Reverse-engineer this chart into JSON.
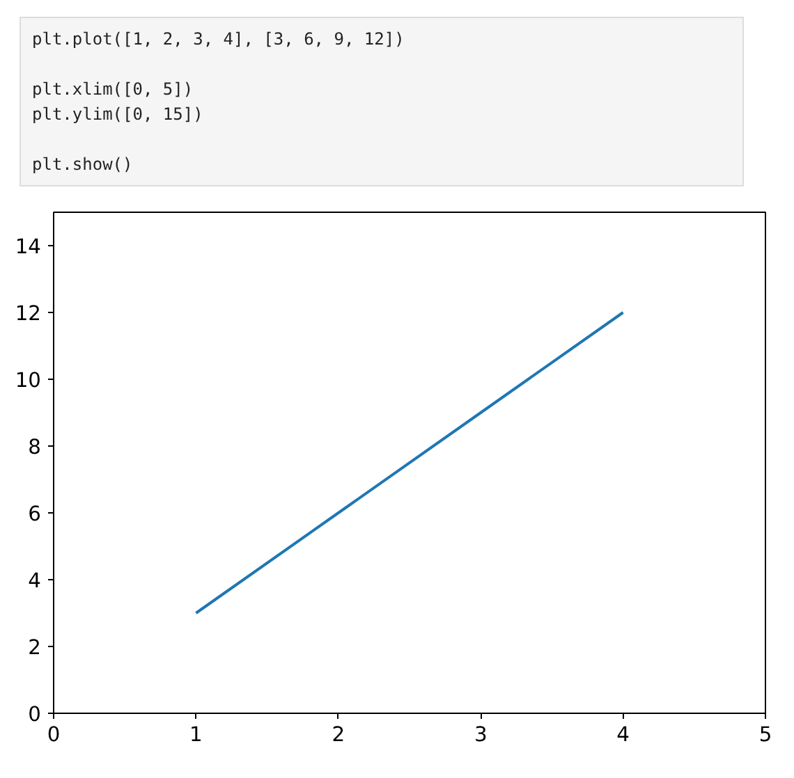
{
  "chart_data": {
    "type": "line",
    "annotations": [
      "plt.plot([1, 2, 3, 4], [3, 6, 9, 12])",
      "plt.xlim([0, 5])\nplt.ylim([0, 15])",
      "plt.show()"
    ],
    "x": [
      1,
      2,
      3,
      4
    ],
    "series": [
      {
        "color": "#1f77b4",
        "values": [
          3,
          6,
          9,
          12
        ]
      }
    ],
    "xlim": [
      0,
      5
    ],
    "ylim": [
      0,
      15
    ],
    "xticks": [
      0,
      1,
      2,
      3,
      4,
      5
    ],
    "yticks": [
      0,
      2,
      4,
      6,
      8,
      10,
      12,
      14
    ],
    "grid": false,
    "line_style": "solid",
    "marker": "none"
  }
}
